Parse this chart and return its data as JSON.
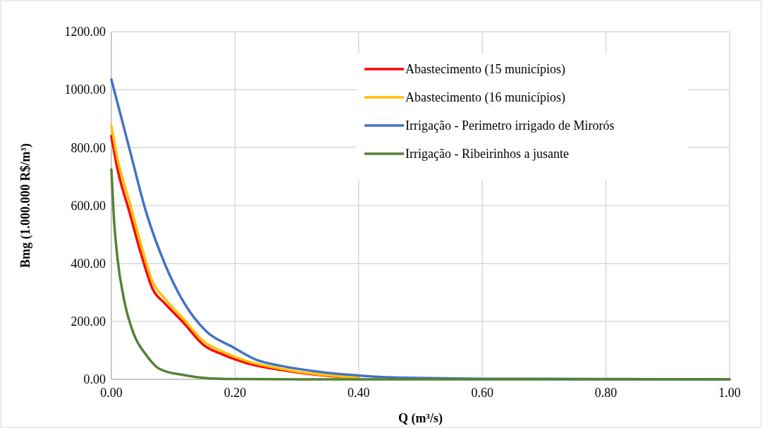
{
  "chart_data": {
    "type": "line",
    "xlabel": "Q (m³/s)",
    "ylabel": "Bmg (1.000.000 R$/m³)",
    "xlim": [
      0,
      1
    ],
    "xticks": [
      {
        "value": 0,
        "label": "0.00"
      },
      {
        "value": 0.2,
        "label": "0.20"
      },
      {
        "value": 0.4,
        "label": "0.40"
      },
      {
        "value": 0.6,
        "label": "0.60"
      },
      {
        "value": 0.8,
        "label": "0.80"
      },
      {
        "value": 1,
        "label": "1.00"
      }
    ],
    "ylim": [
      0,
      1200
    ],
    "yticks": [
      {
        "value": 0,
        "label": "0.00"
      },
      {
        "value": 200,
        "label": "200.00"
      },
      {
        "value": 400,
        "label": "400.00"
      },
      {
        "value": 600,
        "label": "600.00"
      },
      {
        "value": 800,
        "label": "800.00"
      },
      {
        "value": 1000,
        "label": "1000.00"
      },
      {
        "value": 1200,
        "label": "1200.00"
      }
    ],
    "grid": true,
    "legend": "top right",
    "marker": "none",
    "line_style": "solid",
    "series": [
      {
        "name": "Abastecimento (15 municípios)",
        "color": "#ff0000",
        "x": [
          0,
          0.01,
          0.029,
          0.048,
          0.067,
          0.086,
          0.116,
          0.15,
          0.181,
          0.219,
          0.276,
          0.3,
          0.35,
          0.4
        ],
        "values": [
          840,
          725,
          579,
          433,
          311,
          263,
          197,
          117,
          85,
          56,
          32,
          24,
          12,
          4
        ]
      },
      {
        "name": "Abastecimento (16 municípios)",
        "color": "#ffc000",
        "x": [
          0,
          0.01,
          0.029,
          0.048,
          0.067,
          0.086,
          0.116,
          0.15,
          0.181,
          0.219,
          0.276,
          0.3,
          0.35,
          0.4
        ],
        "values": [
          875,
          760,
          615,
          465,
          335,
          280,
          210,
          130,
          95,
          63,
          36,
          27,
          14,
          5
        ]
      },
      {
        "name": "Irrigação - Perimetro irrigado de Mirorós",
        "color": "#4472c4",
        "x": [
          0,
          0.029,
          0.056,
          0.086,
          0.116,
          0.154,
          0.196,
          0.234,
          0.276,
          0.333,
          0.39,
          0.447,
          0.6,
          1
        ],
        "values": [
          1035,
          798,
          579,
          401,
          270,
          165,
          112,
          68,
          46,
          27,
          15,
          7,
          2,
          0
        ]
      },
      {
        "name": "Irrigação - Ribeirinhos a jusante",
        "color": "#548235",
        "x": [
          0,
          0.004,
          0.01,
          0.021,
          0.036,
          0.056,
          0.078,
          0.116,
          0.15,
          0.2,
          0.3,
          1
        ],
        "values": [
          725,
          560,
          416,
          270,
          158,
          85,
          36,
          15,
          5,
          1,
          0,
          0
        ]
      }
    ]
  }
}
